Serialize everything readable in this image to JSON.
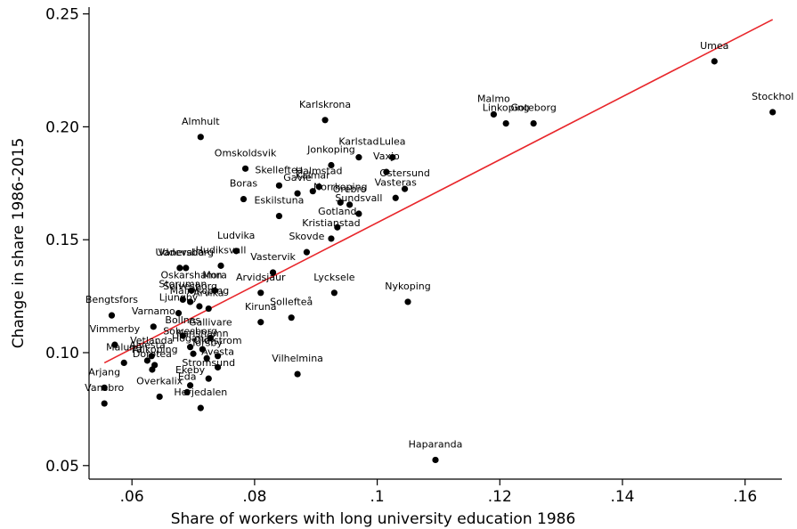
{
  "chart_data": {
    "type": "scatter",
    "xlabel": "Share of workers with long university education 1986",
    "ylabel": "Change in share 1986-2015",
    "xlim": [
      0.053,
      0.166
    ],
    "ylim": [
      0.044,
      0.253
    ],
    "x_ticks": [
      {
        "value": 0.06,
        "label": ".06"
      },
      {
        "value": 0.08,
        "label": ".08"
      },
      {
        "value": 0.1,
        "label": ".1"
      },
      {
        "value": 0.12,
        "label": ".12"
      },
      {
        "value": 0.14,
        "label": ".14"
      },
      {
        "value": 0.16,
        "label": ".16"
      }
    ],
    "y_ticks": [
      {
        "value": 0.05,
        "label": "0.05"
      },
      {
        "value": 0.1,
        "label": "0.10"
      },
      {
        "value": 0.15,
        "label": "0.15"
      },
      {
        "value": 0.2,
        "label": "0.20"
      },
      {
        "value": 0.25,
        "label": "0.25"
      }
    ],
    "grid": false,
    "fit_line": {
      "x": [
        0.0555,
        0.1645
      ],
      "y": [
        0.0955,
        0.2475
      ],
      "color": "#e8262b"
    },
    "points": [
      {
        "label": "Umea",
        "x": 0.155,
        "y": 0.229
      },
      {
        "label": "Stockhol",
        "x": 0.1645,
        "y": 0.2065
      },
      {
        "label": "Malmo",
        "x": 0.119,
        "y": 0.2055
      },
      {
        "label": "Linkoping",
        "x": 0.121,
        "y": 0.2015
      },
      {
        "label": "Goteborg",
        "x": 0.1255,
        "y": 0.2015
      },
      {
        "label": "Almhult",
        "x": 0.0712,
        "y": 0.1955
      },
      {
        "label": "Karlskrona",
        "x": 0.0915,
        "y": 0.203
      },
      {
        "label": "Karlstad",
        "x": 0.097,
        "y": 0.1865
      },
      {
        "label": "Jonkoping",
        "x": 0.0925,
        "y": 0.183
      },
      {
        "label": "Lulea",
        "x": 0.1025,
        "y": 0.1865
      },
      {
        "label": "Vaxjo",
        "x": 0.1015,
        "y": 0.18
      },
      {
        "label": "Omskoldsvik",
        "x": 0.0785,
        "y": 0.1815
      },
      {
        "label": "Skelleftea",
        "x": 0.084,
        "y": 0.174
      },
      {
        "label": "Halmstad",
        "x": 0.0905,
        "y": 0.1735
      },
      {
        "label": "Gavle",
        "x": 0.087,
        "y": 0.1705
      },
      {
        "label": "Kalmar",
        "x": 0.0895,
        "y": 0.1715
      },
      {
        "label": "Ostersund",
        "x": 0.1045,
        "y": 0.1725
      },
      {
        "label": "Vasteras",
        "x": 0.103,
        "y": 0.1685
      },
      {
        "label": "Norrkoping",
        "x": 0.094,
        "y": 0.1665
      },
      {
        "label": "Orebro",
        "x": 0.0955,
        "y": 0.1655
      },
      {
        "label": "Sundsvall",
        "x": 0.097,
        "y": 0.1615
      },
      {
        "label": "Boras",
        "x": 0.0782,
        "y": 0.168
      },
      {
        "label": "Eskilstuna",
        "x": 0.084,
        "y": 0.1605
      },
      {
        "label": "Gotland",
        "x": 0.0935,
        "y": 0.1555
      },
      {
        "label": "Kristianstad",
        "x": 0.0925,
        "y": 0.1505
      },
      {
        "label": "Skovde",
        "x": 0.0885,
        "y": 0.1445
      },
      {
        "label": "Ludvika",
        "x": 0.077,
        "y": 0.145
      },
      {
        "label": "Hudiksvall",
        "x": 0.0745,
        "y": 0.1385
      },
      {
        "label": "Uddevalla",
        "x": 0.0678,
        "y": 0.1375
      },
      {
        "label": "Vanersborg",
        "x": 0.0688,
        "y": 0.1375
      },
      {
        "label": "Vastervik",
        "x": 0.083,
        "y": 0.1355
      },
      {
        "label": "Arvidsjaur",
        "x": 0.081,
        "y": 0.1265
      },
      {
        "label": "Lycksele",
        "x": 0.093,
        "y": 0.1265
      },
      {
        "label": "Oskarshamn",
        "x": 0.0697,
        "y": 0.1275
      },
      {
        "label": "Mora",
        "x": 0.0735,
        "y": 0.1275
      },
      {
        "label": "Nykoping",
        "x": 0.105,
        "y": 0.1225
      },
      {
        "label": "Storuman",
        "x": 0.0683,
        "y": 0.1235
      },
      {
        "label": "Solvesborg",
        "x": 0.0695,
        "y": 0.1225
      },
      {
        "label": "Malmkoping",
        "x": 0.071,
        "y": 0.1205
      },
      {
        "label": "Ljungby",
        "x": 0.0676,
        "y": 0.1175
      },
      {
        "label": "Sollefteå",
        "x": 0.086,
        "y": 0.1155
      },
      {
        "label": "Kiruna",
        "x": 0.081,
        "y": 0.1135
      },
      {
        "label": "Arvika",
        "x": 0.0725,
        "y": 0.1195
      },
      {
        "label": "Bengtsfors",
        "x": 0.0567,
        "y": 0.1165
      },
      {
        "label": "Varnamo",
        "x": 0.0635,
        "y": 0.1115
      },
      {
        "label": "Bollnas",
        "x": 0.0683,
        "y": 0.1075
      },
      {
        "label": "Gallivare",
        "x": 0.0728,
        "y": 0.1065
      },
      {
        "label": "Vimmerby",
        "x": 0.0572,
        "y": 0.1035
      },
      {
        "label": "Solvesborg",
        "x": 0.0695,
        "y": 0.1025
      },
      {
        "label": "Karlshamn",
        "x": 0.0715,
        "y": 0.1015
      },
      {
        "label": "Vetlanda",
        "x": 0.0632,
        "y": 0.0985
      },
      {
        "label": "Hoganas",
        "x": 0.07,
        "y": 0.0995
      },
      {
        "label": "Torsby",
        "x": 0.0722,
        "y": 0.0975
      },
      {
        "label": "Olofstrom",
        "x": 0.074,
        "y": 0.0985
      },
      {
        "label": "Malung",
        "x": 0.0587,
        "y": 0.0955
      },
      {
        "label": "Alvesta",
        "x": 0.0625,
        "y": 0.0965
      },
      {
        "label": "Falkoping",
        "x": 0.0637,
        "y": 0.0945
      },
      {
        "label": "Avesta",
        "x": 0.074,
        "y": 0.0935
      },
      {
        "label": "Vilhelmina",
        "x": 0.087,
        "y": 0.0905
      },
      {
        "label": "Dorotea",
        "x": 0.0633,
        "y": 0.0925
      },
      {
        "label": "Stromsund",
        "x": 0.0725,
        "y": 0.0885
      },
      {
        "label": "Ekeby",
        "x": 0.0695,
        "y": 0.0855
      },
      {
        "label": "Arjang",
        "x": 0.0555,
        "y": 0.0845
      },
      {
        "label": "Overkalix",
        "x": 0.0645,
        "y": 0.0805
      },
      {
        "label": "Eda",
        "x": 0.069,
        "y": 0.0825
      },
      {
        "label": "Herjedalen",
        "x": 0.0712,
        "y": 0.0755
      },
      {
        "label": "Vansbro",
        "x": 0.0555,
        "y": 0.0775
      },
      {
        "label": "Haparanda",
        "x": 0.1095,
        "y": 0.0525
      }
    ]
  }
}
